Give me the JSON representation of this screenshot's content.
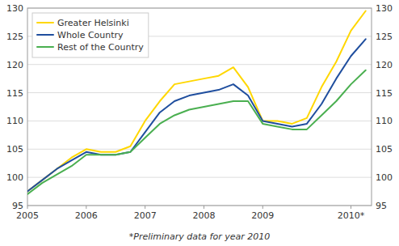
{
  "chart_data": {
    "type": "line",
    "footnote": "*Preliminary data for year 2010",
    "x": [
      2005.0,
      2005.25,
      2005.5,
      2005.75,
      2006.0,
      2006.25,
      2006.5,
      2006.75,
      2007.0,
      2007.25,
      2007.5,
      2007.75,
      2008.0,
      2008.25,
      2008.5,
      2008.75,
      2009.0,
      2009.25,
      2009.5,
      2009.75,
      2010.0,
      2010.25,
      2010.5,
      2010.75
    ],
    "series": [
      {
        "name": "Greater Helsinki",
        "color": "#FFD700",
        "values": [
          97.5,
          99.5,
          101.5,
          103.5,
          105.0,
          104.5,
          104.5,
          105.5,
          110.0,
          113.5,
          116.5,
          117.0,
          117.5,
          118.0,
          119.5,
          116.0,
          110.0,
          110.0,
          109.5,
          110.5,
          116.0,
          120.5,
          126.0,
          129.5
        ]
      },
      {
        "name": "Whole Country",
        "color": "#1F4E9E",
        "values": [
          97.5,
          99.5,
          101.5,
          103.0,
          104.5,
          104.0,
          104.0,
          104.5,
          108.0,
          111.5,
          113.5,
          114.5,
          115.0,
          115.5,
          116.5,
          114.5,
          110.0,
          109.5,
          109.0,
          109.5,
          113.0,
          117.5,
          121.5,
          124.5
        ]
      },
      {
        "name": "Rest of the Country",
        "color": "#4AAF50",
        "values": [
          97.0,
          99.0,
          100.5,
          102.0,
          104.0,
          104.0,
          104.0,
          104.5,
          107.0,
          109.5,
          111.0,
          112.0,
          112.5,
          113.0,
          113.5,
          113.5,
          109.5,
          109.0,
          108.5,
          108.5,
          111.0,
          113.5,
          116.5,
          119.0
        ]
      }
    ],
    "xlim": [
      2005.0,
      2010.85
    ],
    "xticks": [
      2005,
      2006,
      2007,
      2008,
      2009,
      {
        "value": 2010.5,
        "label": "2010*"
      }
    ],
    "ylim": [
      95,
      130
    ],
    "yticks": [
      95,
      100,
      105,
      110,
      115,
      120,
      125,
      130
    ],
    "y2lim": [
      95,
      130
    ],
    "y2ticks": [
      95,
      100,
      105,
      110,
      115,
      120,
      125,
      130
    ],
    "grid": true,
    "legend": "upper left"
  }
}
